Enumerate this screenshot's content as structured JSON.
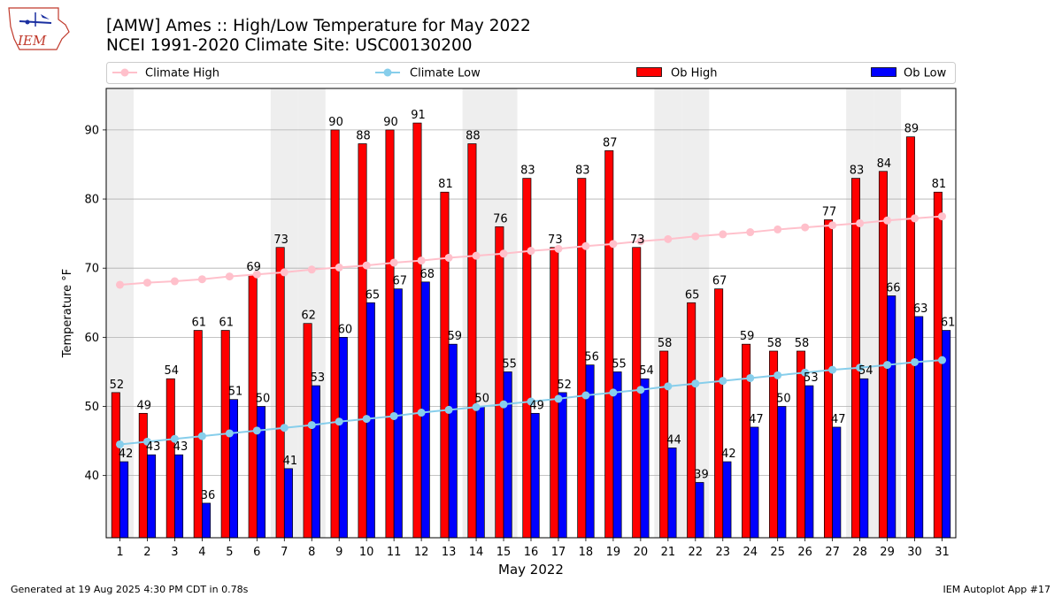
{
  "header": {
    "title_line1": "[AMW] Ames :: High/Low Temperature for May 2022",
    "title_line2": "NCEI 1991-2020 Climate Site: USC00130200",
    "logo_text": "IEM"
  },
  "footer": {
    "generated": "Generated at 19 Aug 2025 4:30 PM CDT in 0.78s",
    "app": "IEM Autoplot App #17"
  },
  "colors": {
    "ob_high": "#ff0000",
    "ob_low": "#0000ff",
    "climate_high": "#ffc0cb",
    "climate_low": "#87ceeb",
    "weekend_shade": "#eeeeee",
    "grid": "#b0b0b0"
  },
  "chart_data": {
    "type": "bar",
    "title": "[AMW] Ames :: High/Low Temperature for May 2022",
    "subtitle": "NCEI 1991-2020 Climate Site: USC00130200",
    "xlabel": "May 2022",
    "ylabel": "Temperature °F",
    "ylim": [
      31,
      96
    ],
    "yticks": [
      40,
      50,
      60,
      70,
      80,
      90
    ],
    "grid": "horizontal",
    "legend_placement": "top",
    "categories": [
      "1",
      "2",
      "3",
      "4",
      "5",
      "6",
      "7",
      "8",
      "9",
      "10",
      "11",
      "12",
      "13",
      "14",
      "15",
      "16",
      "17",
      "18",
      "19",
      "20",
      "21",
      "22",
      "23",
      "24",
      "25",
      "26",
      "27",
      "28",
      "29",
      "30",
      "31"
    ],
    "shaded_days": [
      1,
      7,
      8,
      14,
      15,
      21,
      22,
      28,
      29
    ],
    "series": [
      {
        "name": "Ob High",
        "kind": "bar",
        "values": [
          52,
          49,
          54,
          61,
          61,
          69,
          73,
          62,
          90,
          88,
          90,
          91,
          81,
          88,
          76,
          83,
          73,
          83,
          87,
          73,
          58,
          65,
          67,
          59,
          58,
          58,
          77,
          83,
          84,
          89,
          81
        ]
      },
      {
        "name": "Ob Low",
        "kind": "bar",
        "values": [
          42,
          43,
          43,
          36,
          51,
          50,
          41,
          53,
          60,
          65,
          67,
          68,
          59,
          50,
          55,
          49,
          52,
          56,
          55,
          54,
          44,
          39,
          42,
          47,
          50,
          53,
          47,
          54,
          66,
          63,
          61
        ]
      },
      {
        "name": "Climate High",
        "kind": "line",
        "values": [
          67.6,
          67.9,
          68.1,
          68.4,
          68.8,
          69.1,
          69.4,
          69.8,
          70.1,
          70.4,
          70.8,
          71.1,
          71.5,
          71.8,
          72.1,
          72.5,
          72.8,
          73.2,
          73.5,
          73.9,
          74.2,
          74.6,
          74.9,
          75.2,
          75.6,
          75.9,
          76.2,
          76.5,
          76.9,
          77.2,
          77.5
        ]
      },
      {
        "name": "Climate Low",
        "kind": "line",
        "values": [
          44.5,
          44.9,
          45.3,
          45.7,
          46.1,
          46.5,
          46.9,
          47.3,
          47.8,
          48.2,
          48.6,
          49.1,
          49.5,
          49.9,
          50.3,
          50.7,
          51.1,
          51.6,
          52.0,
          52.4,
          52.9,
          53.3,
          53.7,
          54.1,
          54.5,
          54.9,
          55.3,
          55.6,
          56.0,
          56.4,
          56.7
        ]
      }
    ],
    "legend": [
      "Climate High",
      "Climate Low",
      "Ob High",
      "Ob Low"
    ]
  }
}
